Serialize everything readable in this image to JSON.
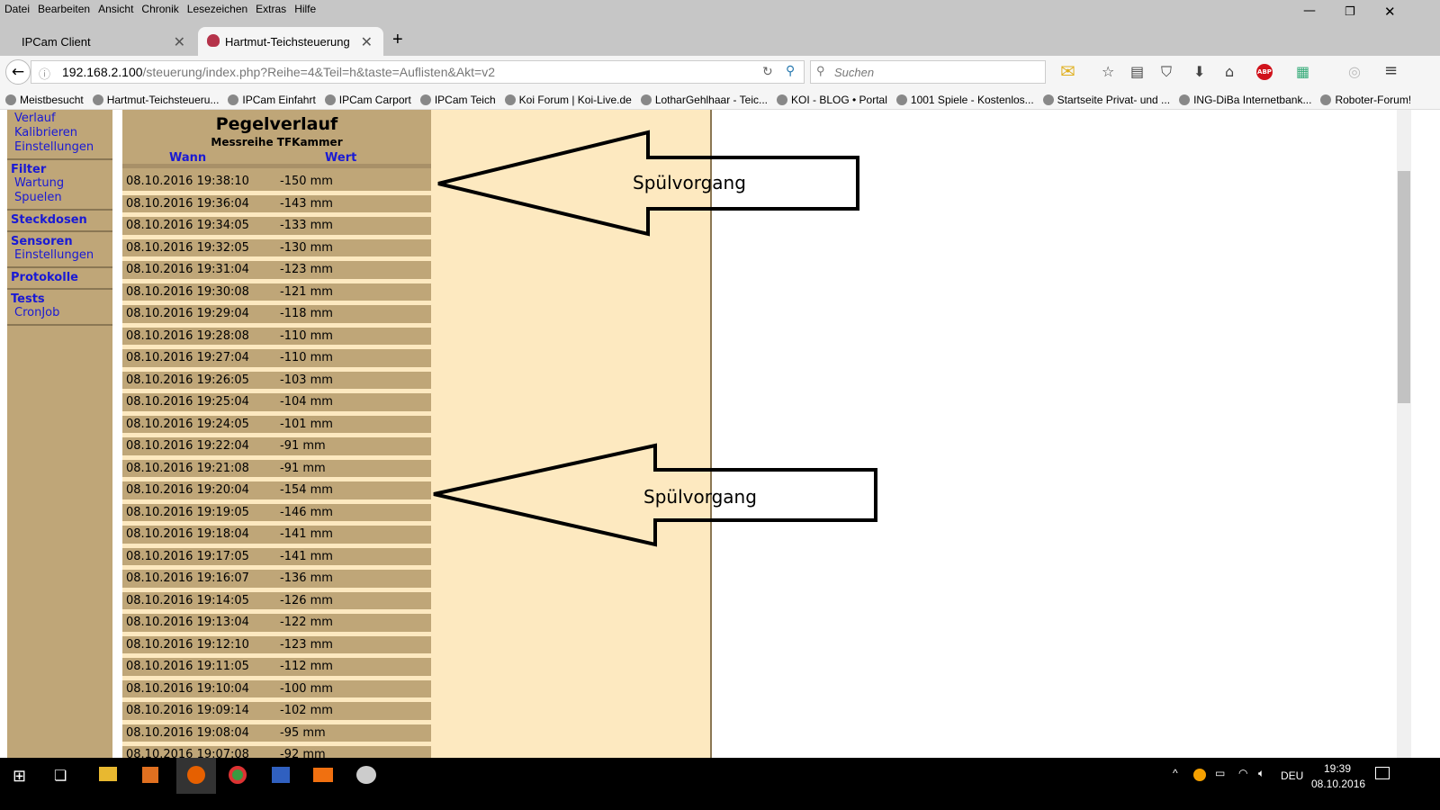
{
  "menu": [
    "Datei",
    "Bearbeiten",
    "Ansicht",
    "Chronik",
    "Lesezeichen",
    "Extras",
    "Hilfe"
  ],
  "tabs": [
    {
      "label": "IPCam Client"
    },
    {
      "label": "Hartmut-Teichsteuerung",
      "active": true
    }
  ],
  "url": {
    "host": "192.168.2.100",
    "path": "/steuerung/index.php?Reihe=4&Teil=h&taste=Auflisten&Akt=v2"
  },
  "search": {
    "placeholder": "Suchen"
  },
  "bookmarks": [
    "Meistbesucht",
    "Hartmut-Teichsteueru...",
    "IPCam Einfahrt",
    "IPCam Carport",
    "IPCam Teich",
    "Koi Forum | Koi-Live.de",
    "LotharGehlhaar - Teic...",
    "KOI - BLOG • Portal",
    "1001 Spiele - Kostenlos...",
    "Startseite Privat- und ...",
    "ING-DiBa Internetbank...",
    "Roboter-Forum!"
  ],
  "sidebar": [
    {
      "heading": "",
      "items": [
        "Verlauf",
        "Kalibrieren",
        "Einstellungen"
      ]
    },
    {
      "heading": "Filter",
      "items": [
        "Wartung",
        "Spuelen"
      ]
    },
    {
      "heading": "Steckdosen",
      "items": []
    },
    {
      "heading": "Sensoren",
      "items": [
        "Einstellungen"
      ]
    },
    {
      "heading": "Protokolle",
      "items": []
    },
    {
      "heading": "Tests",
      "items": [
        "CronJob"
      ]
    }
  ],
  "table": {
    "title": "Pegelverlauf",
    "subtitle": "Messreihe TFKammer",
    "col_when": "Wann",
    "col_value": "Wert",
    "rows": [
      [
        "08.10.2016 19:38:10",
        "-150 mm"
      ],
      [
        "08.10.2016 19:36:04",
        "-143 mm"
      ],
      [
        "08.10.2016 19:34:05",
        "-133 mm"
      ],
      [
        "08.10.2016 19:32:05",
        "-130 mm"
      ],
      [
        "08.10.2016 19:31:04",
        "-123 mm"
      ],
      [
        "08.10.2016 19:30:08",
        "-121 mm"
      ],
      [
        "08.10.2016 19:29:04",
        "-118 mm"
      ],
      [
        "08.10.2016 19:28:08",
        "-110 mm"
      ],
      [
        "08.10.2016 19:27:04",
        "-110 mm"
      ],
      [
        "08.10.2016 19:26:05",
        "-103 mm"
      ],
      [
        "08.10.2016 19:25:04",
        "-104 mm"
      ],
      [
        "08.10.2016 19:24:05",
        "-101 mm"
      ],
      [
        "08.10.2016 19:22:04",
        "-91 mm"
      ],
      [
        "08.10.2016 19:21:08",
        "-91 mm"
      ],
      [
        "08.10.2016 19:20:04",
        "-154 mm"
      ],
      [
        "08.10.2016 19:19:05",
        "-146 mm"
      ],
      [
        "08.10.2016 19:18:04",
        "-141 mm"
      ],
      [
        "08.10.2016 19:17:05",
        "-141 mm"
      ],
      [
        "08.10.2016 19:16:07",
        "-136 mm"
      ],
      [
        "08.10.2016 19:14:05",
        "-126 mm"
      ],
      [
        "08.10.2016 19:13:04",
        "-122 mm"
      ],
      [
        "08.10.2016 19:12:10",
        "-123 mm"
      ],
      [
        "08.10.2016 19:11:05",
        "-112 mm"
      ],
      [
        "08.10.2016 19:10:04",
        "-100 mm"
      ],
      [
        "08.10.2016 19:09:14",
        "-102 mm"
      ],
      [
        "08.10.2016 19:08:04",
        "-95 mm"
      ],
      [
        "08.10.2016 19:07:08",
        "-92 mm"
      ]
    ]
  },
  "annotations": [
    "Spülvorgang",
    "Spülvorgang"
  ],
  "taskbar": {
    "lang": "DEU",
    "time": "19:39",
    "date": "08.10.2016"
  }
}
